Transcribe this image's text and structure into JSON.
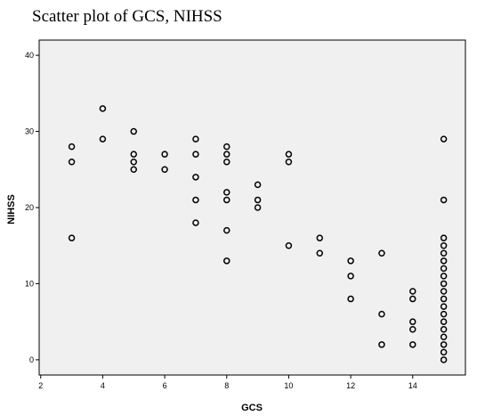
{
  "chart_data": {
    "type": "scatter",
    "title": "Scatter plot of GCS, NIHSS",
    "xlabel": "GCS",
    "ylabel": "NIHSS",
    "xlim": [
      1.95,
      15.7
    ],
    "ylim": [
      -2,
      42
    ],
    "xticks": [
      2,
      4,
      6,
      8,
      10,
      12,
      14
    ],
    "yticks": [
      0,
      10,
      20,
      30,
      40
    ],
    "grid": false,
    "plot_background": "#f0f0f0",
    "marker_color": "#000000",
    "points": [
      [
        3,
        28
      ],
      [
        3,
        26
      ],
      [
        3,
        16
      ],
      [
        4,
        33
      ],
      [
        4,
        29
      ],
      [
        5,
        30
      ],
      [
        5,
        27
      ],
      [
        5,
        26
      ],
      [
        5,
        25
      ],
      [
        6,
        27
      ],
      [
        6,
        25
      ],
      [
        7,
        29
      ],
      [
        7,
        27
      ],
      [
        7,
        24
      ],
      [
        7,
        21
      ],
      [
        7,
        18
      ],
      [
        8,
        28
      ],
      [
        8,
        27
      ],
      [
        8,
        26
      ],
      [
        8,
        22
      ],
      [
        8,
        21
      ],
      [
        8,
        17
      ],
      [
        8,
        13
      ],
      [
        9,
        23
      ],
      [
        9,
        21
      ],
      [
        9,
        20
      ],
      [
        10,
        27
      ],
      [
        10,
        26
      ],
      [
        10,
        15
      ],
      [
        11,
        16
      ],
      [
        11,
        14
      ],
      [
        12,
        13
      ],
      [
        12,
        11
      ],
      [
        12,
        8
      ],
      [
        13,
        14
      ],
      [
        13,
        6
      ],
      [
        13,
        2
      ],
      [
        14,
        9
      ],
      [
        14,
        8
      ],
      [
        14,
        5
      ],
      [
        14,
        4
      ],
      [
        14,
        2
      ],
      [
        15,
        29
      ],
      [
        15,
        21
      ],
      [
        15,
        16
      ],
      [
        15,
        15
      ],
      [
        15,
        14
      ],
      [
        15,
        13
      ],
      [
        15,
        12
      ],
      [
        15,
        11
      ],
      [
        15,
        10
      ],
      [
        15,
        9
      ],
      [
        15,
        8
      ],
      [
        15,
        7
      ],
      [
        15,
        6
      ],
      [
        15,
        5
      ],
      [
        15,
        4
      ],
      [
        15,
        3
      ],
      [
        15,
        2
      ],
      [
        15,
        1
      ],
      [
        15,
        0
      ]
    ]
  }
}
